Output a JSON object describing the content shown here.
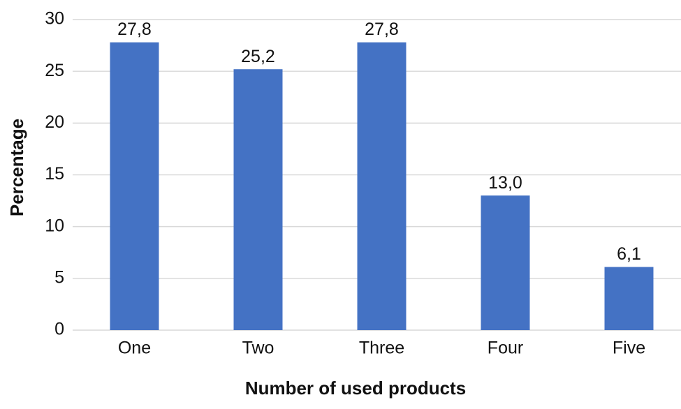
{
  "chart_data": {
    "type": "bar",
    "x_label": "Number of used products",
    "y_label": "Percentage",
    "categories": [
      "One",
      "Two",
      "Three",
      "Four",
      "Five"
    ],
    "values": [
      27.8,
      25.2,
      27.8,
      13.0,
      6.1
    ],
    "value_labels": [
      "27,8",
      "25,2",
      "27,8",
      "13,0",
      "6,1"
    ],
    "color": "#4472c4",
    "ylim": [
      0,
      30
    ],
    "yticks": [
      0,
      5,
      10,
      15,
      20,
      25,
      30
    ],
    "grid": true
  }
}
